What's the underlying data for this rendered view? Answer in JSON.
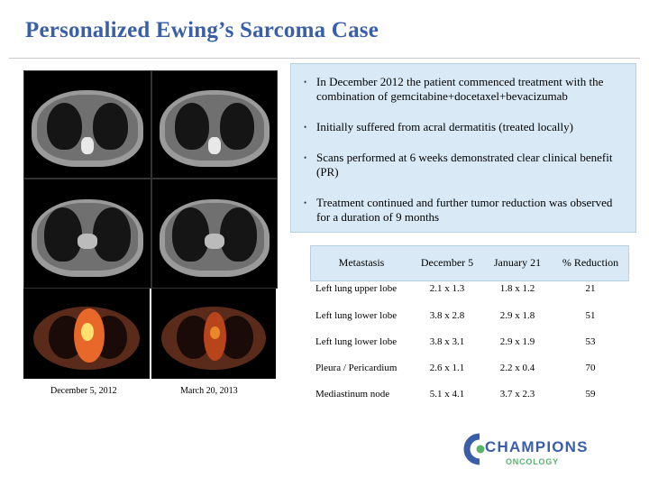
{
  "slide": {
    "title": "Personalized Ewing’s Sarcoma Case"
  },
  "scans": {
    "captions": [
      "December 5, 2012",
      "March 20, 2013"
    ]
  },
  "bullets": [
    "In December 2012 the patient commenced treatment with the combination of gemcitabine+docetaxel+bevacizumab",
    "Initially suffered from acral dermatitis (treated locally)",
    "Scans performed at 6 weeks demonstrated clear clinical benefit (PR)",
    "Treatment continued and further tumor reduction was observed for a duration of 9 months"
  ],
  "bullet_marker": "•",
  "table": {
    "headers": [
      "Metastasis",
      "December 5",
      "January 21",
      "% Reduction"
    ],
    "rows": [
      [
        "Left lung upper lobe",
        "2.1 x 1.3",
        "1.8 x 1.2",
        "21"
      ],
      [
        "Left lung lower lobe",
        "3.8 x 2.8",
        "2.9 x 1.8",
        "51"
      ],
      [
        "Left lung lower lobe",
        "3.8 x 3.1",
        "2.9 x 1.9",
        "53"
      ],
      [
        "Pleura / Pericardium",
        "2.6 x 1.1",
        "2.2 x 0.4",
        "70"
      ],
      [
        "Mediastinum node",
        "5.1 x 4.1",
        "3.7 x 2.3",
        "59"
      ]
    ]
  },
  "logo": {
    "name": "CHAMPIONS",
    "sub": "ONCOLOGY",
    "colors": {
      "blue": "#3a5fa8",
      "green": "#5bb36b"
    }
  },
  "colors": {
    "title": "#3a5fa8",
    "box": "#d9eaf6"
  }
}
